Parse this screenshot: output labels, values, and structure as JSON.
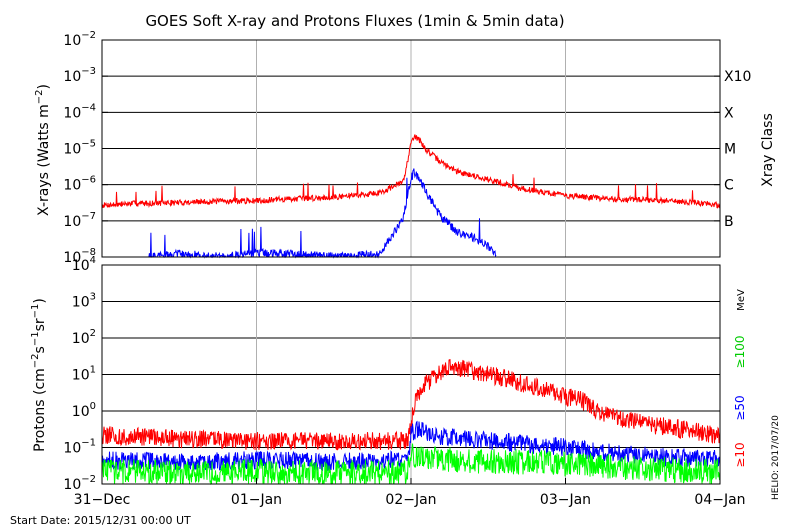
{
  "chart_data": [
    {
      "type": "line",
      "title": "GOES Soft X-ray and Protons Fluxes   (1min & 5min data)",
      "ylabel": "X-rays (Watts m-2)",
      "ylabel_main": "X-rays (Watts m",
      "ylabel_sup": "−2",
      "ylabel_end": ")",
      "yscale": "log",
      "ylim": [
        1e-08,
        0.01
      ],
      "y_ticks": [
        {
          "base": "10",
          "exp": "−2",
          "value": 0.01
        },
        {
          "base": "10",
          "exp": "−3",
          "value": 0.001
        },
        {
          "base": "10",
          "exp": "−4",
          "value": 0.0001
        },
        {
          "base": "10",
          "exp": "−5",
          "value": 1e-05
        },
        {
          "base": "10",
          "exp": "−6",
          "value": 1e-06
        },
        {
          "base": "10",
          "exp": "−7",
          "value": 1e-07
        },
        {
          "base": "10",
          "exp": "−8",
          "value": 1e-08
        }
      ],
      "right_axis_label": "Xray Class",
      "xray_classes": [
        {
          "label": "X10",
          "value": 0.001
        },
        {
          "label": "X",
          "value": 0.0001
        },
        {
          "label": "M",
          "value": 1e-05
        },
        {
          "label": "C",
          "value": 1e-06
        },
        {
          "label": "B",
          "value": 1e-07
        }
      ],
      "series": [
        {
          "color": "#ff0000",
          "x": [
            0,
            0.2,
            0.5,
            0.8,
            1.0,
            1.2,
            1.5,
            1.8,
            1.95,
            1.98,
            2.0,
            2.02,
            2.05,
            2.1,
            2.2,
            2.3,
            2.5,
            2.7,
            3.0,
            3.3,
            3.5,
            3.7,
            3.9,
            4.0
          ],
          "y": [
            2.7e-07,
            3e-07,
            3.2e-07,
            3.5e-07,
            3.6e-07,
            4e-07,
            4.5e-07,
            6e-07,
            1.2e-06,
            5e-06,
            1.6e-05,
            2.2e-05,
            1.8e-05,
            9e-06,
            4e-06,
            2.3e-06,
            1.4e-06,
            8e-07,
            5e-07,
            4e-07,
            3.8e-07,
            3.6e-07,
            3e-07,
            2.7e-07
          ]
        },
        {
          "color": "#0000ff",
          "x": [
            0.3,
            0.5,
            0.8,
            1.0,
            1.2,
            1.4,
            1.5,
            1.8,
            1.95,
            2.0,
            2.02,
            2.05,
            2.1,
            2.15,
            2.2,
            2.3,
            2.4,
            2.5,
            2.55
          ],
          "y": [
            1e-08,
            1.2e-08,
            1e-08,
            1.3e-08,
            1.2e-08,
            1.1e-08,
            1e-08,
            1.2e-08,
            1.2e-07,
            1.4e-06,
            2.3e-06,
            1.6e-06,
            6e-07,
            2.5e-07,
            1.2e-07,
            5e-08,
            3.5e-08,
            2e-08,
            1e-08
          ]
        }
      ]
    },
    {
      "type": "line",
      "ylabel": "Protons (cm-2s-1sr-1)",
      "ylabel_parts": {
        "a": "Protons (cm",
        "b": "−2",
        "c": "s",
        "d": "−1",
        "e": "sr",
        "f": "−1",
        "g": ")"
      },
      "yscale": "log",
      "ylim": [
        0.01,
        10000
      ],
      "y_ticks": [
        {
          "base": "10",
          "exp": "4",
          "value": 10000
        },
        {
          "base": "10",
          "exp": "3",
          "value": 1000
        },
        {
          "base": "10",
          "exp": "2",
          "value": 100
        },
        {
          "base": "10",
          "exp": "1",
          "value": 10
        },
        {
          "base": "10",
          "exp": "0",
          "value": 1
        },
        {
          "base": "10",
          "exp": "−1",
          "value": 0.1
        },
        {
          "base": "10",
          "exp": "−2",
          "value": 0.01
        }
      ],
      "threshold": 10,
      "energy_unit": "MeV",
      "energy_labels": [
        {
          "label": "≥100",
          "color": "#00cc00"
        },
        {
          "label": "≥50",
          "color": "#0000ff"
        },
        {
          "label": "≥10",
          "color": "#ff0000"
        }
      ],
      "series": [
        {
          "color": "#ff0000",
          "x": [
            0,
            0.5,
            1.0,
            1.5,
            1.98,
            2.0,
            2.02,
            2.1,
            2.2,
            2.25,
            2.4,
            2.6,
            2.8,
            3.0,
            3.1,
            3.25,
            3.5,
            3.8,
            4.0
          ],
          "y": [
            0.22,
            0.17,
            0.15,
            0.15,
            0.15,
            0.35,
            1.5,
            6,
            11,
            18,
            12,
            8,
            4.5,
            2.5,
            2,
            0.8,
            0.45,
            0.3,
            0.2
          ]
        },
        {
          "color": "#0000ff",
          "x": [
            0,
            0.5,
            1.0,
            1.5,
            1.98,
            2.0,
            2.05,
            2.2,
            2.5,
            2.8,
            3.0,
            3.3,
            3.6,
            4.0
          ],
          "y": [
            0.045,
            0.04,
            0.045,
            0.04,
            0.045,
            0.25,
            0.3,
            0.2,
            0.15,
            0.12,
            0.1,
            0.07,
            0.055,
            0.05
          ]
        },
        {
          "color": "#00ff00",
          "x": [
            0,
            0.5,
            1.0,
            1.5,
            1.98,
            2.0,
            2.3,
            2.7,
            3.0,
            3.3,
            3.6,
            4.0
          ],
          "y": [
            0.022,
            0.02,
            0.022,
            0.02,
            0.021,
            0.06,
            0.045,
            0.04,
            0.035,
            0.03,
            0.025,
            0.022
          ]
        }
      ]
    }
  ],
  "x_axis": {
    "ticks": [
      {
        "label": "31−Dec",
        "value": 0
      },
      {
        "label": "01−Jan",
        "value": 1
      },
      {
        "label": "02−Jan",
        "value": 2
      },
      {
        "label": "03−Jan",
        "value": 3
      },
      {
        "label": "04−Jan",
        "value": 4
      }
    ],
    "range": [
      0,
      4
    ]
  },
  "footer": {
    "start_date": "Start Date: 2015/12/31 00:00 UT",
    "stamp": "HELIO: 2017/07/20"
  }
}
